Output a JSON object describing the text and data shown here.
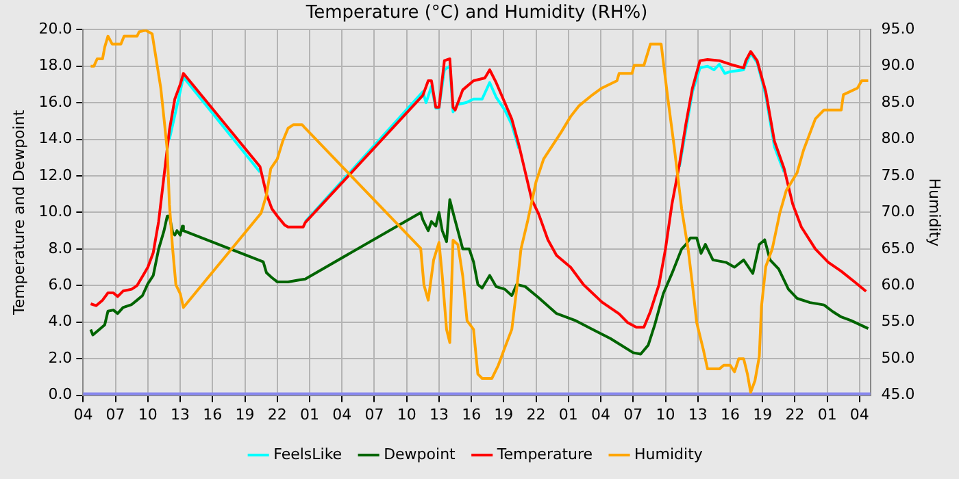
{
  "chart_data": {
    "type": "line",
    "title": "Temperature (°C) and Humidity (RH%)",
    "ylabel": "Temperature and Dewpoint",
    "y2label": "Humidity",
    "xlim": [
      "--01-01T04:00",
      "--01-04T05:00"
    ],
    "xticks": [
      {
        "value": "--01-01T04:00",
        "label": "04"
      },
      {
        "value": "--01-01T07:00",
        "label": "07"
      },
      {
        "value": "--01-01T10:00",
        "label": "10"
      },
      {
        "value": "--01-01T13:00",
        "label": "13"
      },
      {
        "value": "--01-01T16:00",
        "label": "16"
      },
      {
        "value": "--01-01T19:00",
        "label": "19"
      },
      {
        "value": "--01-01T22:00",
        "label": "22"
      },
      {
        "value": "--01-02T01:00",
        "label": "01"
      },
      {
        "value": "--01-02T04:00",
        "label": "04"
      },
      {
        "value": "--01-02T07:00",
        "label": "07"
      },
      {
        "value": "--01-02T10:00",
        "label": "10"
      },
      {
        "value": "--01-02T13:00",
        "label": "13"
      },
      {
        "value": "--01-02T16:00",
        "label": "16"
      },
      {
        "value": "--01-02T19:00",
        "label": "19"
      },
      {
        "value": "--01-02T22:00",
        "label": "22"
      },
      {
        "value": "--01-03T01:00",
        "label": "01"
      },
      {
        "value": "--01-03T04:00",
        "label": "04"
      },
      {
        "value": "--01-03T07:00",
        "label": "07"
      },
      {
        "value": "--01-03T10:00",
        "label": "10"
      },
      {
        "value": "--01-03T13:00",
        "label": "13"
      },
      {
        "value": "--01-03T16:00",
        "label": "16"
      },
      {
        "value": "--01-03T19:00",
        "label": "19"
      },
      {
        "value": "--01-03T22:00",
        "label": "22"
      },
      {
        "value": "--01-04T01:00",
        "label": "01"
      },
      {
        "value": "--01-04T04:00",
        "label": "04"
      }
    ],
    "ylim": [
      0,
      20
    ],
    "yticks": [
      {
        "value": 0,
        "label": "0.0"
      },
      {
        "value": 2,
        "label": "2.0"
      },
      {
        "value": 4,
        "label": "4.0"
      },
      {
        "value": 6,
        "label": "6.0"
      },
      {
        "value": 8,
        "label": "8.0"
      },
      {
        "value": 10,
        "label": "10.0"
      },
      {
        "value": 12,
        "label": "12.0"
      },
      {
        "value": 14,
        "label": "14.0"
      },
      {
        "value": 16,
        "label": "16.0"
      },
      {
        "value": 18,
        "label": "18.0"
      },
      {
        "value": 20,
        "label": "20.0"
      }
    ],
    "y2lim": [
      45,
      95
    ],
    "y2ticks": [
      {
        "value": 45,
        "label": "45.0"
      },
      {
        "value": 50,
        "label": "50.0"
      },
      {
        "value": 55,
        "label": "55.0"
      },
      {
        "value": 60,
        "label": "60.0"
      },
      {
        "value": 65,
        "label": "65.0"
      },
      {
        "value": 70,
        "label": "70.0"
      },
      {
        "value": 75,
        "label": "75.0"
      },
      {
        "value": 80,
        "label": "80.0"
      },
      {
        "value": 85,
        "label": "85.0"
      },
      {
        "value": 90,
        "label": "90.0"
      },
      {
        "value": 95,
        "label": "95.0"
      }
    ],
    "grid": true,
    "legend": "bottom",
    "marker": "none",
    "ref_lines": [
      {
        "axis": "y",
        "value": 0,
        "color": "#8888ee"
      }
    ],
    "series": [
      {
        "name": "FeelsLike",
        "color": "#00ffff",
        "x": [
          "--01-01T12:00",
          "--01-01T13:18",
          "--01-01T20:24",
          "--01-01T21:00",
          "--01-01T22:30",
          "--01-02T00:36",
          "--01-02T11:30",
          "--01-02T11:48",
          "--01-02T12:18",
          "--01-02T12:42",
          "--01-02T13:00",
          "--01-02T13:30",
          "--01-02T14:00",
          "--01-02T14:18",
          "--01-02T14:42",
          "--01-02T15:30",
          "--01-02T16:12",
          "--01-02T17:00",
          "--01-02T17:42",
          "--01-02T18:18",
          "--01-02T19:06",
          "--01-02T19:45",
          "--01-02T20:24",
          "--01-03T02:00",
          "--01-03T11:18",
          "--01-03T12:30",
          "--01-03T13:12",
          "--01-03T13:54",
          "--01-03T14:30",
          "--01-03T15:00",
          "--01-03T15:30",
          "--01-03T16:00",
          "--01-03T17:15",
          "--01-03T17:54",
          "--01-03T18:30",
          "--01-03T19:18",
          "--01-03T20:06",
          "--01-03T21:00"
        ],
        "values": [
          14.0,
          17.4,
          12.2,
          null,
          null,
          9.5,
          16.6,
          16.0,
          16.9,
          15.7,
          15.7,
          17.8,
          18.0,
          15.5,
          15.9,
          16.0,
          16.2,
          16.2,
          17.1,
          16.3,
          15.6,
          14.8,
          13.5,
          null,
          12.5,
          16.6,
          17.9,
          18.0,
          17.8,
          18.1,
          17.6,
          17.7,
          17.8,
          18.7,
          18.2,
          16.4,
          13.6,
          12.2
        ]
      },
      {
        "name": "Dewpoint",
        "color": "#006400",
        "x": [
          "--01-01T04:42",
          "--01-01T04:54",
          "--01-01T05:30",
          "--01-01T06:00",
          "--01-01T06:18",
          "--01-01T06:48",
          "--01-01T07:12",
          "--01-01T07:42",
          "--01-01T08:30",
          "--01-01T09:00",
          "--01-01T09:30",
          "--01-01T10:00",
          "--01-01T10:30",
          "--01-01T11:00",
          "--01-01T11:30",
          "--01-01T11:48",
          "--01-01T12:00",
          "--01-01T12:18",
          "--01-01T12:30",
          "--01-01T12:42",
          "--01-01T13:00",
          "--01-01T13:12",
          "--01-01T13:18",
          "--01-01T20:42",
          "--01-01T21:00",
          "--01-01T21:30",
          "--01-01T22:00",
          "--01-01T23:00",
          "--01-02T00:00",
          "--01-02T00:36",
          "--01-02T11:18",
          "--01-02T11:30",
          "--01-02T12:00",
          "--01-02T12:18",
          "--01-02T12:42",
          "--01-02T13:00",
          "--01-02T13:18",
          "--01-02T13:42",
          "--01-02T14:00",
          "--01-02T14:18",
          "--01-02T14:45",
          "--01-02T15:12",
          "--01-02T15:48",
          "--01-02T16:12",
          "--01-02T16:36",
          "--01-02T17:00",
          "--01-02T17:42",
          "--01-02T18:18",
          "--01-02T19:06",
          "--01-02T19:45",
          "--01-02T20:12",
          "--01-02T21:00",
          "--01-02T22:15",
          "--01-02T23:54",
          "--01-03T01:36",
          "--01-03T03:15",
          "--01-03T04:54",
          "--01-03T07:00",
          "--01-03T07:42",
          "--01-03T08:24",
          "--01-03T09:00",
          "--01-03T09:48",
          "--01-03T10:36",
          "--01-03T11:30",
          "--01-03T11:54",
          "--01-03T12:18",
          "--01-03T12:54",
          "--01-03T13:18",
          "--01-03T13:42",
          "--01-03T14:24",
          "--01-03T15:36",
          "--01-03T16:24",
          "--01-03T17:15",
          "--01-03T18:06",
          "--01-03T18:42",
          "--01-03T19:12",
          "--01-03T19:42",
          "--01-03T20:30",
          "--01-03T21:24",
          "--01-03T22:12",
          "--01-03T23:24",
          "--01-04T00:42",
          "--01-04T01:30",
          "--01-04T02:18",
          "--01-04T03:12",
          "--01-04T04:48"
        ],
        "values": [
          3.6,
          3.3,
          3.6,
          3.85,
          4.6,
          4.66,
          4.47,
          4.8,
          4.96,
          5.2,
          5.45,
          6.1,
          6.55,
          8.0,
          9.0,
          9.8,
          9.8,
          8.9,
          8.76,
          9.0,
          8.76,
          9.25,
          9.0,
          7.3,
          6.7,
          6.43,
          6.2,
          6.2,
          6.3,
          6.36,
          9.99,
          9.6,
          9.0,
          9.5,
          9.25,
          10.0,
          9.0,
          8.4,
          10.7,
          10.0,
          9.0,
          8.0,
          8.0,
          7.3,
          6.06,
          5.86,
          6.55,
          5.94,
          5.8,
          5.45,
          6.06,
          5.94,
          5.33,
          4.47,
          4.1,
          3.6,
          3.1,
          2.33,
          2.25,
          2.74,
          3.84,
          5.56,
          6.66,
          8.0,
          8.25,
          8.6,
          8.6,
          7.76,
          8.25,
          7.4,
          7.27,
          7.0,
          7.4,
          6.66,
          8.25,
          8.5,
          7.4,
          6.9,
          5.8,
          5.3,
          5.07,
          4.94,
          4.58,
          4.28,
          4.09,
          3.65
        ]
      },
      {
        "name": "Temperature",
        "color": "#ff0000",
        "x": [
          "--01-01T04:42",
          "--01-01T05:12",
          "--01-01T05:48",
          "--01-01T06:18",
          "--01-01T06:48",
          "--01-01T07:12",
          "--01-01T07:42",
          "--01-01T08:30",
          "--01-01T09:00",
          "--01-01T09:30",
          "--01-01T10:00",
          "--01-01T10:30",
          "--01-01T11:00",
          "--01-01T11:30",
          "--01-01T12:00",
          "--01-01T12:30",
          "--01-01T13:00",
          "--01-01T13:18",
          "--01-01T20:24",
          "--01-01T21:00",
          "--01-01T21:30",
          "--01-01T22:00",
          "--01-01T22:42",
          "--01-01T23:00",
          "--01-02T00:24",
          "--01-02T00:36",
          "--01-02T11:30",
          "--01-02T12:00",
          "--01-02T12:18",
          "--01-02T12:42",
          "--01-02T13:00",
          "--01-02T13:30",
          "--01-02T14:00",
          "--01-02T14:18",
          "--01-02T14:30",
          "--01-02T15:12",
          "--01-02T16:12",
          "--01-02T17:15",
          "--01-02T17:42",
          "--01-02T18:18",
          "--01-02T19:06",
          "--01-02T19:45",
          "--01-02T20:24",
          "--01-02T21:00",
          "--01-02T21:36",
          "--01-02T22:15",
          "--01-02T23:06",
          "--01-02T23:54",
          "--01-03T01:12",
          "--01-03T02:24",
          "--01-03T04:06",
          "--01-03T05:42",
          "--01-03T06:30",
          "--01-03T07:18",
          "--01-03T08:00",
          "--01-03T08:36",
          "--01-03T09:24",
          "--01-03T10:00",
          "--01-03T10:36",
          "--01-03T11:18",
          "--01-03T11:54",
          "--01-03T12:30",
          "--01-03T13:12",
          "--01-03T13:54",
          "--01-03T15:00",
          "--01-03T16:00",
          "--01-03T17:15",
          "--01-03T17:27",
          "--01-03T17:54",
          "--01-03T18:30",
          "--01-03T19:18",
          "--01-03T20:06",
          "--01-03T21:00",
          "--01-03T21:48",
          "--01-03T22:36",
          "--01-03T23:54",
          "--01-04T01:06",
          "--01-04T02:18",
          "--01-04T03:36",
          "--01-04T04:36"
        ],
        "values": [
          5.0,
          4.9,
          5.2,
          5.6,
          5.6,
          5.4,
          5.7,
          5.8,
          6.0,
          6.5,
          7.0,
          7.8,
          9.5,
          12.0,
          14.5,
          16.2,
          17.0,
          17.6,
          12.5,
          11.0,
          10.2,
          9.8,
          9.3,
          9.2,
          9.2,
          9.45,
          16.4,
          17.2,
          17.2,
          15.75,
          15.75,
          18.3,
          18.4,
          15.75,
          15.6,
          16.7,
          17.2,
          17.35,
          17.8,
          17.1,
          16.0,
          15.1,
          13.7,
          12.2,
          10.7,
          9.9,
          8.5,
          7.65,
          7.0,
          6.05,
          5.1,
          4.45,
          3.97,
          3.72,
          3.72,
          4.58,
          6.05,
          8.0,
          10.45,
          12.65,
          14.86,
          16.8,
          18.3,
          18.36,
          18.3,
          18.1,
          17.9,
          18.3,
          18.8,
          18.3,
          16.6,
          13.9,
          12.4,
          10.45,
          9.2,
          8.0,
          7.27,
          6.78,
          6.17,
          5.68
        ]
      },
      {
        "name": "Humidity",
        "color": "#ffa500",
        "axis": "y2",
        "x": [
          "--01-01T04:42",
          "--01-01T05:00",
          "--01-01T05:18",
          "--01-01T05:48",
          "--01-01T06:00",
          "--01-01T06:18",
          "--01-01T06:42",
          "--01-01T07:30",
          "--01-01T07:48",
          "--01-01T09:00",
          "--01-01T09:12",
          "--01-01T09:48",
          "--01-01T10:24",
          "--01-01T10:48",
          "--01-01T11:12",
          "--01-01T11:30",
          "--01-01T11:48",
          "--01-01T12:00",
          "--01-01T12:18",
          "--01-01T12:36",
          "--01-01T13:00",
          "--01-01T13:18",
          "--01-01T20:30",
          "--01-01T21:00",
          "--01-01T21:24",
          "--01-01T22:00",
          "--01-01T22:30",
          "--01-01T23:00",
          "--01-01T23:30",
          "--01-02T00:18",
          "--01-02T00:36",
          "--01-02T11:18",
          "--01-02T11:36",
          "--01-02T12:00",
          "--01-02T12:30",
          "--01-02T13:00",
          "--01-02T13:18",
          "--01-02T13:42",
          "--01-02T14:00",
          "--01-02T14:18",
          "--01-02T14:45",
          "--01-02T15:12",
          "--01-02T15:36",
          "--01-02T16:12",
          "--01-02T16:36",
          "--01-02T17:00",
          "--01-02T17:54",
          "--01-02T18:30",
          "--01-02T19:06",
          "--01-02T19:45",
          "--01-02T20:12",
          "--01-02T20:36",
          "--01-02T21:12",
          "--01-02T22:00",
          "--01-02T22:42",
          "--01-02T23:30",
          "--01-03T00:18",
          "--01-03T01:12",
          "--01-03T02:00",
          "--01-03T03:15",
          "--01-03T04:06",
          "--01-03T05:30",
          "--01-03T05:42",
          "--01-03T06:54",
          "--01-03T07:06",
          "--01-03T08:00",
          "--01-03T08:36",
          "--01-03T09:36",
          "--01-03T10:12",
          "--01-03T10:48",
          "--01-03T11:30",
          "--01-03T12:06",
          "--01-03T12:30",
          "--01-03T12:54",
          "--01-03T13:30",
          "--01-03T13:54",
          "--01-03T15:00",
          "--01-03T15:24",
          "--01-03T16:00",
          "--01-03T16:24",
          "--01-03T16:48",
          "--01-03T17:15",
          "--01-03T17:36",
          "--01-03T17:54",
          "--01-03T18:18",
          "--01-03T18:42",
          "--01-03T18:54",
          "--01-03T19:18",
          "--01-03T19:54",
          "--01-03T20:36",
          "--01-03T21:12",
          "--01-03T22:12",
          "--01-03T22:48",
          "--01-03T23:54",
          "--01-04T00:42",
          "--01-04T02:18",
          "--01-04T02:30",
          "--01-04T03:48",
          "--01-04T04:12",
          "--01-04T04:48"
        ],
        "values": [
          90.0,
          90.0,
          91.0,
          91.0,
          92.6,
          94.1,
          93.0,
          93.0,
          94.1,
          94.1,
          94.7,
          94.9,
          94.4,
          90.7,
          87.0,
          82.8,
          78.5,
          71.1,
          65.0,
          60.1,
          58.9,
          57.0,
          69.9,
          72.4,
          76.0,
          77.3,
          79.7,
          81.5,
          82.0,
          82.0,
          81.5,
          65.1,
          60.1,
          58.0,
          63.5,
          65.9,
          61.3,
          54.0,
          52.2,
          66.2,
          65.6,
          61.3,
          55.2,
          54.0,
          47.9,
          47.3,
          47.3,
          49.1,
          51.5,
          54.0,
          59.5,
          65.0,
          68.7,
          74.2,
          77.3,
          79.1,
          80.9,
          83.1,
          84.6,
          86.1,
          87.0,
          88.0,
          89.0,
          89.0,
          90.1,
          90.1,
          93.0,
          93.0,
          85.8,
          79.1,
          70.5,
          65.0,
          60.1,
          54.9,
          51.3,
          48.6,
          48.6,
          49.1,
          49.1,
          48.2,
          50.0,
          50.0,
          47.9,
          45.4,
          47.0,
          50.3,
          57.1,
          62.6,
          65.0,
          69.9,
          73.0,
          75.4,
          78.5,
          82.8,
          84.0,
          84.0,
          86.1,
          87.0,
          88.0,
          88.0
        ]
      }
    ]
  }
}
